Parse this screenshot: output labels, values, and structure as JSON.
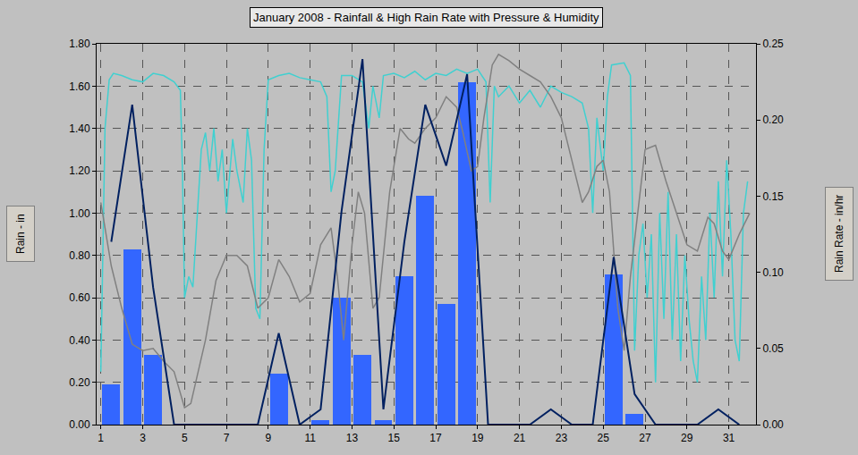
{
  "chart_data": {
    "type": "bar",
    "title": "January 2008 - Rainfall & High Rain Rate with Pressure & Humidity",
    "y_label": "Rain - in",
    "y2_label": "Rain Rate - in/hr",
    "xlim": [
      0.8,
      32.3
    ],
    "xticks": [
      1,
      3,
      5,
      7,
      9,
      11,
      13,
      15,
      17,
      19,
      21,
      23,
      25,
      27,
      29,
      31
    ],
    "ylim": [
      0,
      1.8
    ],
    "yticks": [
      {
        "value": 0,
        "label": "0.00"
      },
      {
        "value": 0.2,
        "label": "0.20"
      },
      {
        "value": 0.4,
        "label": "0.40"
      },
      {
        "value": 0.6,
        "label": "0.60"
      },
      {
        "value": 0.8,
        "label": "0.80"
      },
      {
        "value": 1.0,
        "label": "1.00"
      },
      {
        "value": 1.2,
        "label": "1.20"
      },
      {
        "value": 1.4,
        "label": "1.40"
      },
      {
        "value": 1.6,
        "label": "1.60"
      },
      {
        "value": 1.8,
        "label": "1.80"
      }
    ],
    "y2lim": [
      0,
      0.25
    ],
    "y2ticks": [
      {
        "value": 0,
        "label": "0.00"
      },
      {
        "value": 0.05,
        "label": "0.05"
      },
      {
        "value": 0.1,
        "label": "0.10"
      },
      {
        "value": 0.15,
        "label": "0.15"
      },
      {
        "value": 0.2,
        "label": "0.20"
      },
      {
        "value": 0.25,
        "label": "0.25"
      }
    ],
    "grid": true,
    "series": [
      {
        "type": "line",
        "color": "#40d0d0",
        "x": [
          1.0,
          1.2,
          1.4,
          1.6,
          2,
          2.5,
          3,
          3.5,
          4,
          4.5,
          4.8,
          4.9,
          5.0,
          5.2,
          5.4,
          5.6,
          5.8,
          6.0,
          6.2,
          6.4,
          6.6,
          6.8,
          7.0,
          7.3,
          7.5,
          7.8,
          8.0,
          8.2,
          8.4,
          8.6,
          8.8,
          9.0,
          9.5,
          10,
          10.5,
          11,
          11.5,
          11.8,
          12.0,
          12.2,
          12.5,
          13,
          13.5,
          13.8,
          14.0,
          14.3,
          14.5,
          15,
          15.5,
          16,
          16.5,
          17,
          17.5,
          18,
          18.5,
          19,
          19.4,
          19.6,
          19.8,
          20,
          20.5,
          21,
          21.5,
          22,
          22.5,
          23,
          23.5,
          24,
          24.3,
          24.5,
          24.7,
          25,
          25.2,
          25.4,
          26,
          26.3,
          26.5,
          26.7,
          26.9,
          27.1,
          27.3,
          27.5,
          27.7,
          27.9,
          28.1,
          28.3,
          28.5,
          28.7,
          28.9,
          29.1,
          29.3,
          29.5,
          29.7,
          29.9,
          30.1,
          30.3,
          30.5,
          30.7,
          30.9,
          31.1,
          31.3,
          31.5,
          31.7,
          31.9
        ],
        "values": [
          0.25,
          1.4,
          1.63,
          1.66,
          1.65,
          1.63,
          1.62,
          1.66,
          1.65,
          1.62,
          1.58,
          1.2,
          0.6,
          0.7,
          0.65,
          1.0,
          1.3,
          1.38,
          1.2,
          1.4,
          1.15,
          1.3,
          1.0,
          1.35,
          1.2,
          1.05,
          1.4,
          1.25,
          0.55,
          0.5,
          1.3,
          1.63,
          1.65,
          1.66,
          1.64,
          1.63,
          1.62,
          1.55,
          1.1,
          1.2,
          1.65,
          1.65,
          1.62,
          1.4,
          1.6,
          1.45,
          1.65,
          1.66,
          1.64,
          1.67,
          1.63,
          1.66,
          1.65,
          1.68,
          1.66,
          1.68,
          1.62,
          1.05,
          1.6,
          1.55,
          1.6,
          1.52,
          1.58,
          1.5,
          1.6,
          1.57,
          1.55,
          1.52,
          1.4,
          1.0,
          1.45,
          1.2,
          1.55,
          1.7,
          1.71,
          1.65,
          0.35,
          0.8,
          0.95,
          0.6,
          0.9,
          0.2,
          1.0,
          0.5,
          1.1,
          0.4,
          0.9,
          0.3,
          0.8,
          0.5,
          0.3,
          0.2,
          0.7,
          0.4,
          1.0,
          0.6,
          1.15,
          0.7,
          1.25,
          0.9,
          0.4,
          0.3,
          1.0,
          1.15
        ]
      },
      {
        "type": "line",
        "color": "#808080",
        "x": [
          1,
          1.5,
          2,
          2.5,
          3,
          3.5,
          4,
          4.5,
          5,
          5.3,
          6,
          6.5,
          7,
          7.5,
          8,
          8.5,
          9,
          9.5,
          10,
          10.5,
          11,
          11.5,
          12,
          12.3,
          12.6,
          13,
          13.3,
          13.6,
          14,
          14.3,
          14.8,
          15.3,
          15.7,
          16,
          16.5,
          17,
          17.5,
          18,
          18.3,
          18.7,
          19,
          19.3,
          19.7,
          20,
          20.5,
          21,
          21.5,
          22,
          22.5,
          23,
          23.5,
          24,
          24.3,
          24.7,
          25,
          25.3,
          25.7,
          26,
          26.3,
          26.7,
          27,
          27.5,
          28,
          28.5,
          29,
          29.5,
          30,
          30.3,
          30.7,
          31,
          31.5,
          32
        ],
        "values": [
          1.05,
          0.75,
          0.55,
          0.38,
          0.35,
          0.36,
          0.3,
          0.25,
          0.08,
          0.1,
          0.4,
          0.68,
          0.8,
          0.8,
          0.75,
          0.55,
          0.6,
          0.78,
          0.7,
          0.58,
          0.62,
          0.85,
          0.93,
          0.7,
          0.4,
          0.85,
          1.1,
          1.0,
          0.55,
          0.6,
          1.1,
          1.4,
          1.35,
          1.33,
          1.4,
          1.45,
          1.55,
          1.5,
          1.38,
          1.2,
          1.22,
          1.45,
          1.7,
          1.75,
          1.72,
          1.68,
          1.65,
          1.62,
          1.55,
          1.45,
          1.25,
          1.05,
          1.1,
          1.22,
          1.25,
          1.1,
          0.55,
          0.35,
          0.7,
          1.05,
          1.3,
          1.32,
          1.15,
          1.0,
          0.85,
          0.82,
          0.98,
          0.95,
          0.82,
          0.78,
          0.9,
          1.0
        ]
      },
      {
        "type": "bar",
        "color": "#3366ff",
        "x": [
          1.5,
          2.5,
          3.5,
          4.5,
          5.5,
          6.5,
          7.5,
          8.5,
          9.5,
          10.5,
          11.5,
          12.5,
          13.5,
          14.5,
          15.5,
          16.5,
          17.5,
          18.5,
          19.5,
          20.5,
          21.5,
          22.5,
          23.5,
          24.5,
          25.5,
          26.5,
          27.5,
          28.5,
          29.5,
          30.5,
          31.5
        ],
        "values": [
          0.19,
          0.83,
          0.33,
          0,
          0,
          0,
          0,
          0,
          0.24,
          0,
          0.02,
          0.6,
          0.33,
          0.02,
          0.7,
          1.08,
          0.57,
          1.62,
          0,
          0,
          0,
          0,
          0,
          0,
          0.71,
          0.05,
          0,
          0,
          0,
          0,
          0
        ]
      },
      {
        "type": "line",
        "axis": "y2",
        "color": "#002060",
        "x": [
          1.5,
          2.5,
          3.5,
          4.5,
          5.5,
          6.5,
          7.5,
          8.5,
          9.5,
          10.5,
          11.5,
          12.5,
          13.5,
          14.5,
          15.5,
          16.5,
          17.5,
          18.5,
          19.5,
          20.5,
          21.5,
          22.5,
          23.5,
          24.5,
          25.5,
          26.5,
          27.5,
          28.5,
          29.5,
          30.5,
          31.5
        ],
        "values": [
          0.12,
          0.21,
          0.09,
          0,
          0,
          0,
          0,
          0,
          0.06,
          0,
          0.01,
          0.14,
          0.24,
          0.01,
          0.12,
          0.21,
          0.17,
          0.23,
          0,
          0,
          0,
          0.01,
          0,
          0,
          0.11,
          0.02,
          0,
          0,
          0,
          0.01,
          0
        ]
      }
    ]
  }
}
